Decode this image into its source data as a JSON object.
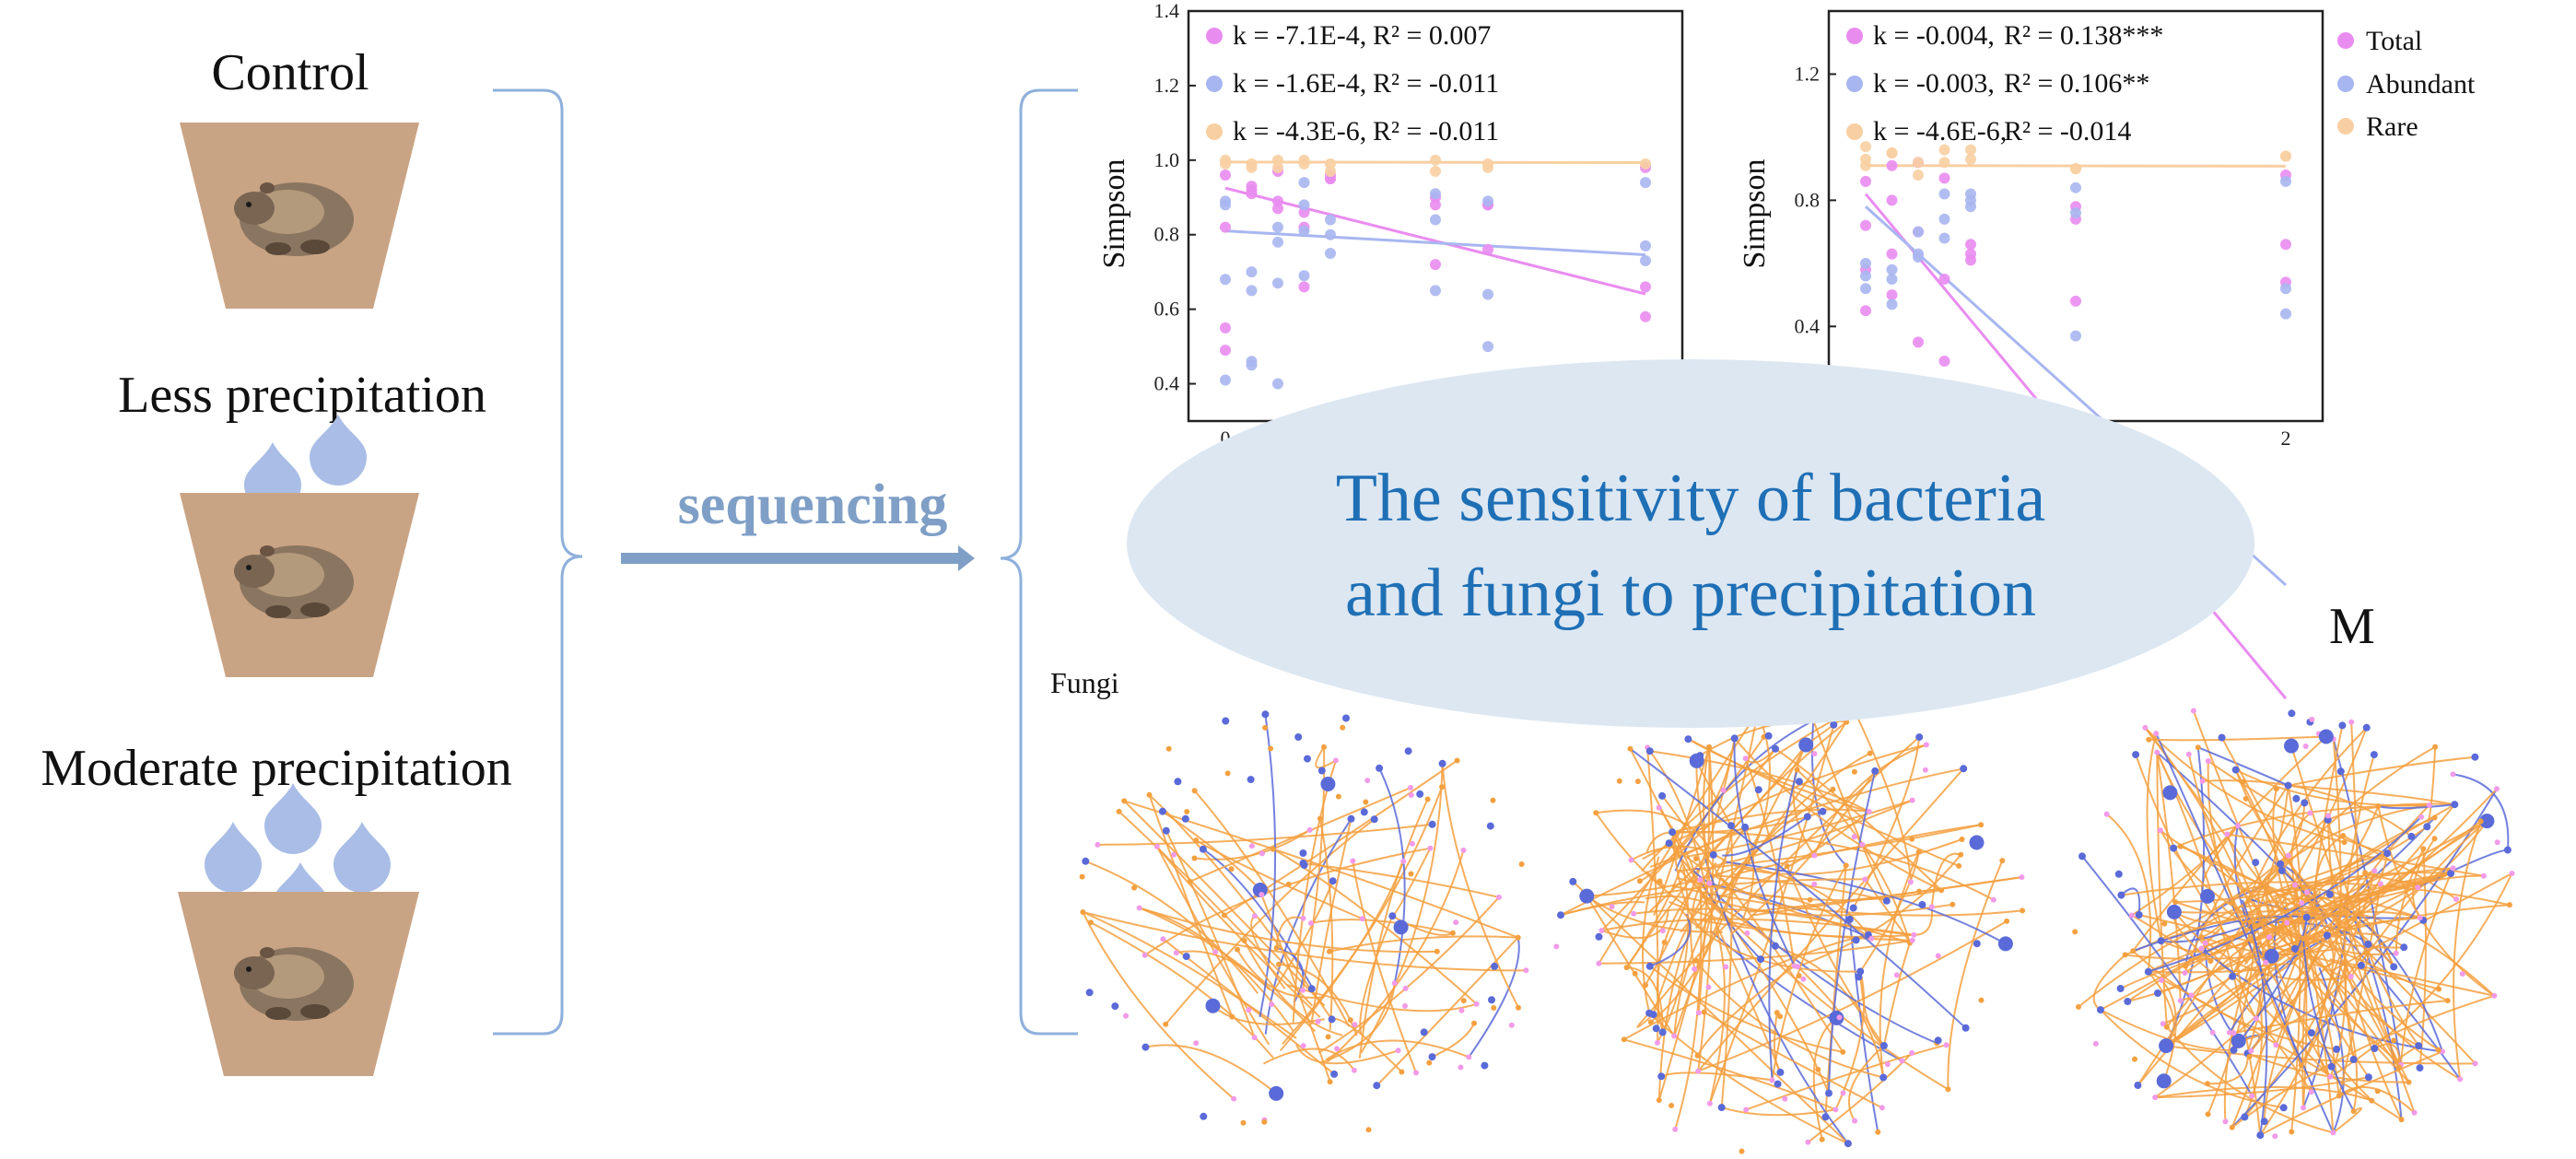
{
  "treatments": [
    {
      "label": "Control",
      "drops": 0
    },
    {
      "label": "Less precipitation",
      "drops": 2
    },
    {
      "label": "Moderate precipitation",
      "drops": 4
    }
  ],
  "process_label": "sequencing",
  "callout": {
    "line1": "The sensitivity of bacteria",
    "line2": "and fungi to precipitation"
  },
  "network_titles": [
    "Fungi",
    "M"
  ],
  "colors": {
    "total": "#e98cf0",
    "abundant": "#a8b6f0",
    "rare": "#f8cfa2",
    "pot": "#c9a484",
    "drop": "#a9bde6",
    "bracket": "#8fb0dc",
    "callout_fill": "#dce7f2",
    "callout_text": "#1f6fb5",
    "edge_orange": "#f4a040",
    "edge_blue": "#5a6ad8",
    "node_blue": "#5a6ad8",
    "node_pink": "#f29ae8"
  },
  "icons": {
    "pot": "pot-icon",
    "drop": "water-drop-icon",
    "animal": "pika-icon",
    "arrow": "arrow-icon"
  },
  "chart_data": [
    {
      "type": "scatter",
      "ylabel": "Simpson",
      "xlabel": "",
      "ylim": [
        0.3,
        1.4
      ],
      "yticks": [
        "0.4",
        "0.6",
        "0.8",
        "1.0",
        "1.2",
        "1.4"
      ],
      "xticks": [
        "0"
      ],
      "xlim": [
        0,
        4
      ],
      "series": [
        {
          "name": "Total",
          "color": "#e98cf0",
          "slope": -0.00071,
          "intercept": 0.925,
          "stat_k": "k = -7.1E-4,",
          "stat_r2": "R² = 0.007"
        },
        {
          "name": "Abundant",
          "color": "#a8b6f0",
          "slope": -0.00016,
          "intercept": 0.81,
          "stat_k": "k = -1.6E-4,",
          "stat_r2": "R² = -0.011"
        },
        {
          "name": "Rare",
          "color": "#f8cfa2",
          "slope": -4.3e-06,
          "intercept": 0.995,
          "stat_k": "k = -4.3E-6,",
          "stat_r2": "R² = -0.011"
        }
      ],
      "x_groups": [
        0,
        0.25,
        0.5,
        0.75,
        1.0,
        2.0,
        2.5,
        4.0
      ],
      "points": {
        "Total": [
          0.49,
          0.93,
          0.97,
          0.82,
          0.95,
          0.9,
          0.88,
          0.66,
          0.96,
          0.92,
          0.89,
          0.86,
          0.95,
          0.88,
          0.76,
          0.58,
          0.55,
          0.91,
          0.87,
          0.66,
          0.96,
          0.72,
          0.88,
          0.98,
          0.82
        ],
        "Abundant": [
          0.41,
          0.65,
          0.78,
          0.88,
          0.8,
          0.65,
          0.5,
          0.94,
          0.89,
          0.7,
          0.67,
          0.81,
          0.84,
          0.91,
          0.64,
          0.73,
          0.88,
          0.46,
          0.4,
          0.69,
          0.75,
          0.84,
          0.89,
          0.77,
          0.68,
          0.45,
          0.82,
          0.94
        ],
        "Rare": [
          0.99,
          0.98,
          1.0,
          0.99,
          0.97,
          1.0,
          0.98,
          0.99,
          1.0,
          0.99,
          0.98,
          1.0,
          0.99,
          0.97,
          0.99
        ]
      }
    },
    {
      "type": "scatter",
      "ylabel": "Simpson",
      "xlabel": "",
      "ylim": [
        0.1,
        1.4
      ],
      "yticks": [
        "0.4",
        "0.8",
        "1.2"
      ],
      "xticks": [
        "2"
      ],
      "xlim": [
        0,
        4
      ],
      "series": [
        {
          "name": "Total",
          "color": "#e98cf0",
          "slope": -0.004,
          "intercept": 0.82,
          "stat_k": "k = -0.004,",
          "stat_r2": "R² = 0.138***"
        },
        {
          "name": "Abundant",
          "color": "#a8b6f0",
          "slope": -0.003,
          "intercept": 0.78,
          "stat_k": "k = -0.003,",
          "stat_r2": "R² = 0.106**"
        },
        {
          "name": "Rare",
          "color": "#f8cfa2",
          "slope": -4.6e-06,
          "intercept": 0.91,
          "stat_k": "k = -4.6E-6,",
          "stat_r2": "R² = -0.014"
        }
      ],
      "x_groups": [
        0,
        0.25,
        0.5,
        0.75,
        1.0,
        2.0,
        4.0
      ],
      "points": {
        "Total": [
          0.58,
          0.63,
          0.92,
          0.87,
          0.66,
          0.78,
          0.88,
          0.72,
          0.5,
          0.35,
          0.29,
          0.63,
          0.48,
          0.54,
          0.86,
          0.91,
          0.7,
          0.55,
          0.61,
          0.74,
          0.66,
          0.45,
          0.8
        ],
        "Abundant": [
          0.52,
          0.55,
          0.7,
          0.82,
          0.78,
          0.84,
          0.52,
          0.6,
          0.47,
          0.63,
          0.74,
          0.82,
          0.37,
          0.44,
          0.56,
          0.58,
          0.62,
          0.68,
          0.8,
          0.76,
          0.86
        ],
        "Rare": [
          0.97,
          0.95,
          0.92,
          0.96,
          0.93,
          0.9,
          0.94,
          0.91,
          0.95,
          0.88,
          0.92,
          0.96,
          0.9,
          0.94,
          0.93
        ]
      }
    }
  ]
}
